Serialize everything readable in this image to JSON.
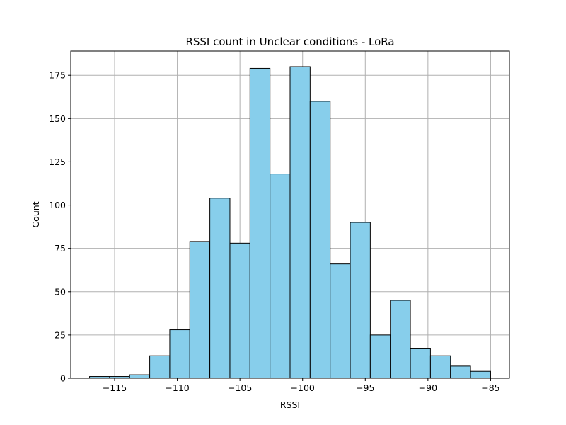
{
  "chart_data": {
    "type": "bar",
    "title": "RSSI count in Unclear conditions - LoRa",
    "xlabel": "RSSI",
    "ylabel": "Count",
    "xlim": [
      -118.5,
      -83.5
    ],
    "ylim": [
      0,
      189
    ],
    "grid": true,
    "bar_color": "#87ceeb",
    "edge_color": "#000000",
    "bin_edges": [
      -117,
      -115.4,
      -113.8,
      -112.2,
      -110.6,
      -109,
      -107.4,
      -105.8,
      -104.2,
      -102.6,
      -101,
      -99.4,
      -97.8,
      -96.2,
      -94.6,
      -93,
      -91.4,
      -89.8,
      -88.2,
      -86.6,
      -85
    ],
    "values": [
      1,
      1,
      2,
      13,
      28,
      79,
      104,
      78,
      179,
      118,
      180,
      160,
      66,
      90,
      25,
      45,
      17,
      13,
      7,
      4
    ],
    "xticks": [
      -115,
      -110,
      -105,
      -100,
      -95,
      -90,
      -85
    ],
    "xtick_labels": [
      "−115",
      "−110",
      "−105",
      "−100",
      "−95",
      "−90",
      "−85"
    ],
    "yticks": [
      0,
      25,
      50,
      75,
      100,
      125,
      150,
      175
    ],
    "ytick_labels": [
      "0",
      "25",
      "50",
      "75",
      "100",
      "125",
      "150",
      "175"
    ]
  }
}
